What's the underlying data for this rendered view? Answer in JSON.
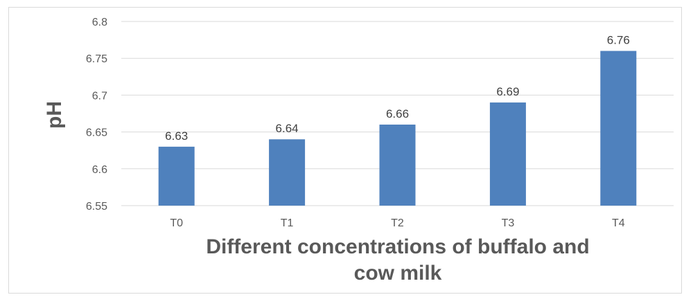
{
  "chart_data": {
    "type": "bar",
    "categories": [
      "T0",
      "T1",
      "T2",
      "T3",
      "T4"
    ],
    "values": [
      6.63,
      6.64,
      6.66,
      6.69,
      6.76
    ],
    "data_labels": [
      "6.63",
      "6.64",
      "6.66",
      "6.69",
      "6.76"
    ],
    "title": "",
    "xlabel_lines": [
      "Different concentrations of buffalo and",
      "cow milk"
    ],
    "ylabel": "pH",
    "ylim": [
      6.55,
      6.8
    ],
    "yticks": [
      "6.55",
      "6.6",
      "6.65",
      "6.7",
      "6.75",
      "6.8"
    ],
    "grid": true,
    "legend": "none",
    "bar_color": "#4f81bd",
    "grid_color": "#d9d9d9"
  }
}
